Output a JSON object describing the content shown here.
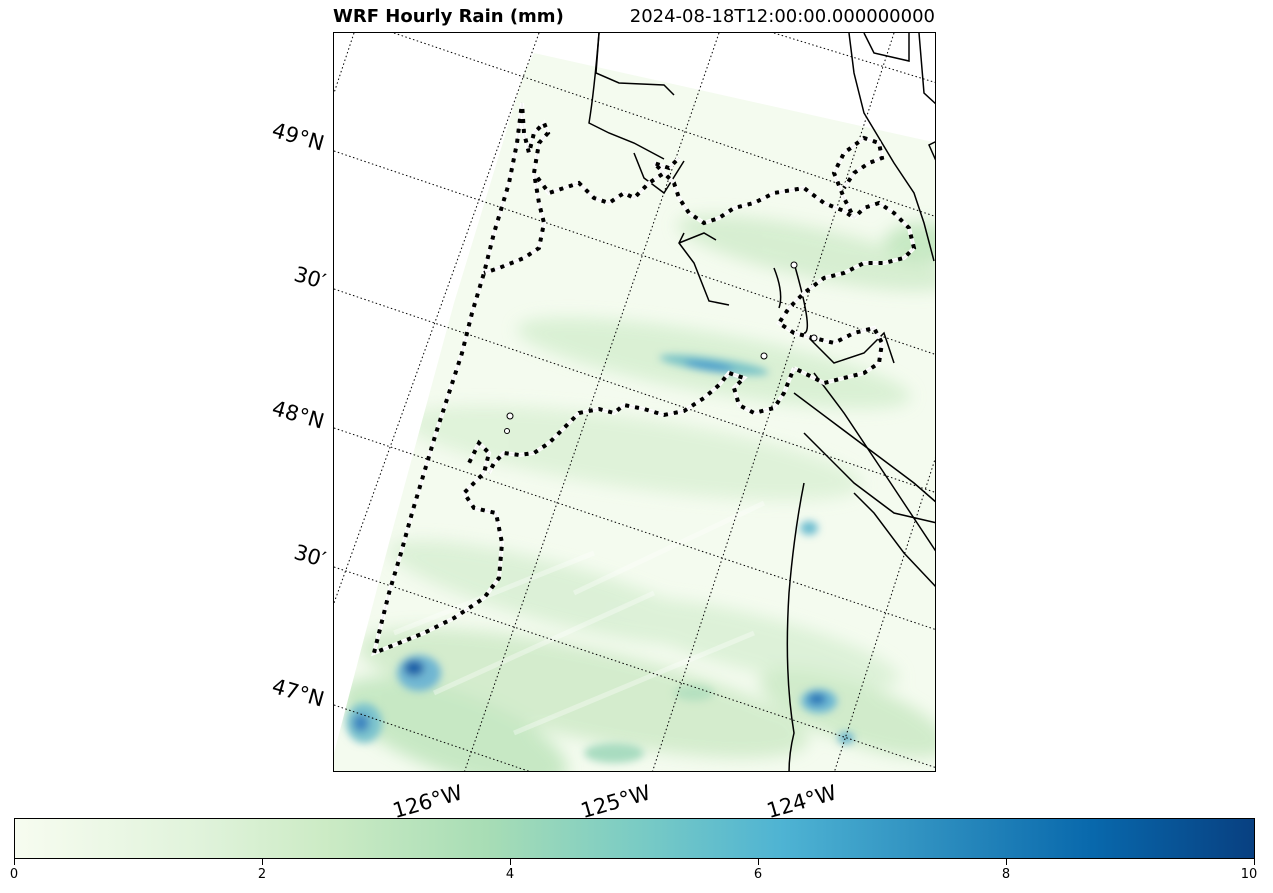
{
  "title": {
    "left": "WRF Hourly Rain (mm)",
    "right": "2024-08-18T12:00:00.000000000"
  },
  "lat_labels": [
    "49°N",
    "30′",
    "48°N",
    "30′",
    "47°N"
  ],
  "lon_labels": [
    "126°W",
    "125°W",
    "124°W"
  ],
  "colorbar": {
    "colormap": "GnBu",
    "min": 0,
    "max": 10,
    "ticks": [
      "0",
      "2",
      "4",
      "6",
      "8",
      "10"
    ],
    "colors": [
      "#f7fcf0",
      "#e0f3db",
      "#ccebc5",
      "#a8ddb5",
      "#7bccc4",
      "#4eb3d3",
      "#2b8cbe",
      "#0868ac",
      "#084081"
    ]
  },
  "colors": {
    "land_border": "#000000",
    "gridline": "#000000",
    "coastline_dashed": "#000000"
  }
}
